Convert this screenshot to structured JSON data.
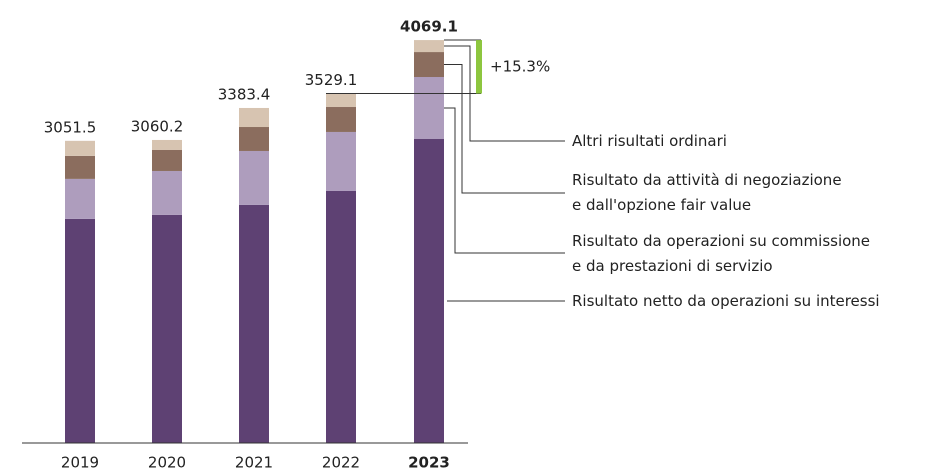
{
  "chart_data": {
    "type": "stacked_bar",
    "categories": [
      "2019",
      "2020",
      "2021",
      "2022",
      "2023"
    ],
    "series": [
      {
        "name": "Risultato netto da operazioni su interessi",
        "color": "#5e4173",
        "values": [
          2263,
          2303,
          2404,
          2545,
          3070
        ]
      },
      {
        "name": "Risultato da operazioni su commissione\ne da prestazioni di servizio",
        "color": "#ae9dbd",
        "values": [
          404,
          444,
          545,
          596,
          626
        ]
      },
      {
        "name": "Risultato da attività di negoziazione\ne dall'opzione fair value",
        "color": "#8b6d5e",
        "values": [
          232,
          212,
          242,
          252,
          252
        ]
      },
      {
        "name": "Altri risultati ordinari",
        "color": "#d7c4b1",
        "values": [
          152.5,
          101.2,
          192.4,
          136.1,
          121.1
        ]
      }
    ],
    "totals": [
      3051.5,
      3060.2,
      3383.4,
      3529.1,
      4069.1
    ],
    "highlight_index": 4,
    "annotation": "+15.3%",
    "annotation_color": "#8dc63f",
    "ylim": [
      0,
      4100
    ]
  }
}
